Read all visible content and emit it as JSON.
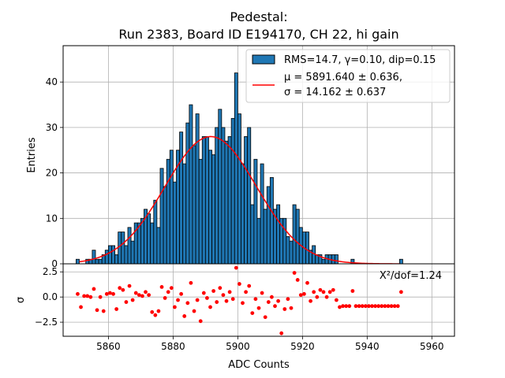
{
  "colors": {
    "bar_fill": "#1f77b4",
    "bar_edge": "#000000",
    "fit_line": "#ff0000",
    "residual_points": "#ff0000",
    "grid": "#b0b0b0"
  },
  "chart_data": {
    "type": "bar",
    "title_line1": "Pedestal:",
    "title_line2": "Run 2383, Board ID E194170, CH 22, hi gain",
    "xlabel": "ADC Counts",
    "ylabel_top": "Entries",
    "ylabel_bottom": "σ",
    "xlim": [
      5846,
      5967
    ],
    "ylim_top": [
      0,
      48
    ],
    "ylim_bottom": [
      -3.9,
      3.3
    ],
    "x_ticks": [
      5860,
      5880,
      5900,
      5920,
      5940,
      5960
    ],
    "y_ticks_top": [
      0,
      10,
      20,
      30,
      40
    ],
    "y_ticks_bottom": [
      -2.5,
      0.0,
      2.5
    ],
    "x_tick_labels": [
      "5860",
      "5880",
      "5900",
      "5920",
      "5940",
      "5960"
    ],
    "y_tick_labels_top": [
      "0",
      "10",
      "20",
      "30",
      "40"
    ],
    "y_tick_labels_bottom": [
      "−2.5",
      "0.0",
      "2.5"
    ],
    "grid": true,
    "legend_location": "top-right",
    "legend": {
      "hist_label": "RMS=14.7, γ=0.10, dip=0.15",
      "fit_label_line1": "μ = 5891.640 ± 0.636,",
      "fit_label_line2": "σ = 14.162 ± 0.637"
    },
    "chi2_annotation": "X²/dof=1.24",
    "fit": {
      "mu": 5891.64,
      "sigma": 14.162,
      "amplitude": 28
    },
    "histogram": {
      "bin_width": 1,
      "bins": [
        {
          "x": 5850,
          "y": 1
        },
        {
          "x": 5853,
          "y": 1
        },
        {
          "x": 5854,
          "y": 1
        },
        {
          "x": 5855,
          "y": 3
        },
        {
          "x": 5856,
          "y": 1
        },
        {
          "x": 5857,
          "y": 1
        },
        {
          "x": 5858,
          "y": 2
        },
        {
          "x": 5859,
          "y": 3
        },
        {
          "x": 5860,
          "y": 4
        },
        {
          "x": 5861,
          "y": 4
        },
        {
          "x": 5862,
          "y": 2
        },
        {
          "x": 5863,
          "y": 7
        },
        {
          "x": 5864,
          "y": 7
        },
        {
          "x": 5865,
          "y": 4
        },
        {
          "x": 5866,
          "y": 8
        },
        {
          "x": 5867,
          "y": 5
        },
        {
          "x": 5868,
          "y": 9
        },
        {
          "x": 5869,
          "y": 9
        },
        {
          "x": 5870,
          "y": 10
        },
        {
          "x": 5871,
          "y": 12
        },
        {
          "x": 5872,
          "y": 11
        },
        {
          "x": 5873,
          "y": 9
        },
        {
          "x": 5874,
          "y": 14
        },
        {
          "x": 5875,
          "y": 8
        },
        {
          "x": 5876,
          "y": 21
        },
        {
          "x": 5877,
          "y": 17
        },
        {
          "x": 5878,
          "y": 23
        },
        {
          "x": 5879,
          "y": 25
        },
        {
          "x": 5880,
          "y": 18
        },
        {
          "x": 5881,
          "y": 25
        },
        {
          "x": 5882,
          "y": 29
        },
        {
          "x": 5883,
          "y": 22
        },
        {
          "x": 5884,
          "y": 31
        },
        {
          "x": 5885,
          "y": 35
        },
        {
          "x": 5886,
          "y": 26
        },
        {
          "x": 5887,
          "y": 33
        },
        {
          "x": 5888,
          "y": 23
        },
        {
          "x": 5889,
          "y": 28
        },
        {
          "x": 5890,
          "y": 28
        },
        {
          "x": 5891,
          "y": 25
        },
        {
          "x": 5892,
          "y": 24
        },
        {
          "x": 5893,
          "y": 30
        },
        {
          "x": 5894,
          "y": 34
        },
        {
          "x": 5895,
          "y": 30
        },
        {
          "x": 5896,
          "y": 27
        },
        {
          "x": 5897,
          "y": 28
        },
        {
          "x": 5898,
          "y": 32
        },
        {
          "x": 5899,
          "y": 42
        },
        {
          "x": 5900,
          "y": 33
        },
        {
          "x": 5901,
          "y": 22
        },
        {
          "x": 5902,
          "y": 28
        },
        {
          "x": 5903,
          "y": 30
        },
        {
          "x": 5904,
          "y": 13
        },
        {
          "x": 5905,
          "y": 23
        },
        {
          "x": 5906,
          "y": 10
        },
        {
          "x": 5907,
          "y": 22
        },
        {
          "x": 5908,
          "y": 12
        },
        {
          "x": 5909,
          "y": 17
        },
        {
          "x": 5910,
          "y": 19
        },
        {
          "x": 5911,
          "y": 12
        },
        {
          "x": 5912,
          "y": 13
        },
        {
          "x": 5913,
          "y": 10
        },
        {
          "x": 5914,
          "y": 10
        },
        {
          "x": 5915,
          "y": 6
        },
        {
          "x": 5916,
          "y": 5
        },
        {
          "x": 5917,
          "y": 13
        },
        {
          "x": 5918,
          "y": 12
        },
        {
          "x": 5919,
          "y": 8
        },
        {
          "x": 5920,
          "y": 7
        },
        {
          "x": 5921,
          "y": 7
        },
        {
          "x": 5922,
          "y": 3
        },
        {
          "x": 5923,
          "y": 4
        },
        {
          "x": 5924,
          "y": 2
        },
        {
          "x": 5925,
          "y": 2
        },
        {
          "x": 5926,
          "y": 1
        },
        {
          "x": 5927,
          "y": 2
        },
        {
          "x": 5928,
          "y": 2
        },
        {
          "x": 5929,
          "y": 2
        },
        {
          "x": 5930,
          "y": 2
        },
        {
          "x": 5935,
          "y": 1
        },
        {
          "x": 5950,
          "y": 1
        }
      ]
    },
    "residuals": [
      {
        "x": 5850,
        "y": 0.3
      },
      {
        "x": 5851,
        "y": -1.0
      },
      {
        "x": 5852,
        "y": 0.1
      },
      {
        "x": 5853,
        "y": 0.1
      },
      {
        "x": 5854,
        "y": 0.0
      },
      {
        "x": 5855,
        "y": 0.8
      },
      {
        "x": 5856,
        "y": -1.3
      },
      {
        "x": 5857,
        "y": 0.0
      },
      {
        "x": 5858,
        "y": -1.4
      },
      {
        "x": 5859,
        "y": 0.3
      },
      {
        "x": 5860,
        "y": 0.4
      },
      {
        "x": 5861,
        "y": 0.3
      },
      {
        "x": 5862,
        "y": -1.2
      },
      {
        "x": 5863,
        "y": 0.9
      },
      {
        "x": 5864,
        "y": 0.7
      },
      {
        "x": 5865,
        "y": -0.5
      },
      {
        "x": 5866,
        "y": 1.1
      },
      {
        "x": 5867,
        "y": -0.3
      },
      {
        "x": 5868,
        "y": 0.4
      },
      {
        "x": 5869,
        "y": 0.2
      },
      {
        "x": 5870,
        "y": 0.1
      },
      {
        "x": 5871,
        "y": 0.5
      },
      {
        "x": 5872,
        "y": 0.2
      },
      {
        "x": 5873,
        "y": -1.5
      },
      {
        "x": 5874,
        "y": -1.8
      },
      {
        "x": 5875,
        "y": -1.4
      },
      {
        "x": 5876,
        "y": 1.0
      },
      {
        "x": 5877,
        "y": -0.1
      },
      {
        "x": 5878,
        "y": 0.5
      },
      {
        "x": 5879,
        "y": 0.9
      },
      {
        "x": 5880,
        "y": -1.0
      },
      {
        "x": 5881,
        "y": -0.3
      },
      {
        "x": 5882,
        "y": 0.3
      },
      {
        "x": 5883,
        "y": -1.9
      },
      {
        "x": 5884,
        "y": -0.6
      },
      {
        "x": 5885,
        "y": 1.4
      },
      {
        "x": 5886,
        "y": -1.4
      },
      {
        "x": 5887,
        "y": -0.3
      },
      {
        "x": 5888,
        "y": -2.4
      },
      {
        "x": 5889,
        "y": 0.4
      },
      {
        "x": 5890,
        "y": -0.1
      },
      {
        "x": 5891,
        "y": -1.0
      },
      {
        "x": 5892,
        "y": 0.6
      },
      {
        "x": 5893,
        "y": -0.5
      },
      {
        "x": 5894,
        "y": 0.9
      },
      {
        "x": 5895,
        "y": 0.2
      },
      {
        "x": 5896,
        "y": -0.4
      },
      {
        "x": 5897,
        "y": 0.5
      },
      {
        "x": 5898,
        "y": -0.2
      },
      {
        "x": 5899,
        "y": 2.9
      },
      {
        "x": 5900,
        "y": 1.3
      },
      {
        "x": 5901,
        "y": -0.6
      },
      {
        "x": 5902,
        "y": 0.5
      },
      {
        "x": 5903,
        "y": 1.1
      },
      {
        "x": 5904,
        "y": -1.6
      },
      {
        "x": 5905,
        "y": -0.2
      },
      {
        "x": 5906,
        "y": -1.1
      },
      {
        "x": 5907,
        "y": 0.4
      },
      {
        "x": 5908,
        "y": -2.0
      },
      {
        "x": 5909,
        "y": -0.5
      },
      {
        "x": 5910,
        "y": 0.0
      },
      {
        "x": 5911,
        "y": -0.9
      },
      {
        "x": 5912,
        "y": -0.4
      },
      {
        "x": 5913,
        "y": -3.6
      },
      {
        "x": 5914,
        "y": -1.2
      },
      {
        "x": 5915,
        "y": -0.2
      },
      {
        "x": 5916,
        "y": -1.1
      },
      {
        "x": 5917,
        "y": 2.4
      },
      {
        "x": 5918,
        "y": 1.7
      },
      {
        "x": 5919,
        "y": 0.2
      },
      {
        "x": 5920,
        "y": 0.3
      },
      {
        "x": 5921,
        "y": 1.4
      },
      {
        "x": 5922,
        "y": -0.4
      },
      {
        "x": 5923,
        "y": 0.5
      },
      {
        "x": 5924,
        "y": 0.0
      },
      {
        "x": 5925,
        "y": 0.7
      },
      {
        "x": 5926,
        "y": 0.5
      },
      {
        "x": 5927,
        "y": 0.0
      },
      {
        "x": 5928,
        "y": 0.5
      },
      {
        "x": 5929,
        "y": 0.7
      },
      {
        "x": 5930,
        "y": -0.3
      },
      {
        "x": 5931,
        "y": -1.0
      },
      {
        "x": 5932,
        "y": -0.9
      },
      {
        "x": 5933,
        "y": -0.9
      },
      {
        "x": 5934,
        "y": -0.9
      },
      {
        "x": 5935,
        "y": 0.6
      },
      {
        "x": 5936,
        "y": -0.9
      },
      {
        "x": 5937,
        "y": -0.9
      },
      {
        "x": 5938,
        "y": -0.9
      },
      {
        "x": 5939,
        "y": -0.9
      },
      {
        "x": 5940,
        "y": -0.9
      },
      {
        "x": 5941,
        "y": -0.9
      },
      {
        "x": 5942,
        "y": -0.9
      },
      {
        "x": 5943,
        "y": -0.9
      },
      {
        "x": 5944,
        "y": -0.9
      },
      {
        "x": 5945,
        "y": -0.9
      },
      {
        "x": 5946,
        "y": -0.9
      },
      {
        "x": 5947,
        "y": -0.9
      },
      {
        "x": 5948,
        "y": -0.9
      },
      {
        "x": 5949,
        "y": -0.9
      },
      {
        "x": 5950,
        "y": 0.5
      }
    ]
  }
}
